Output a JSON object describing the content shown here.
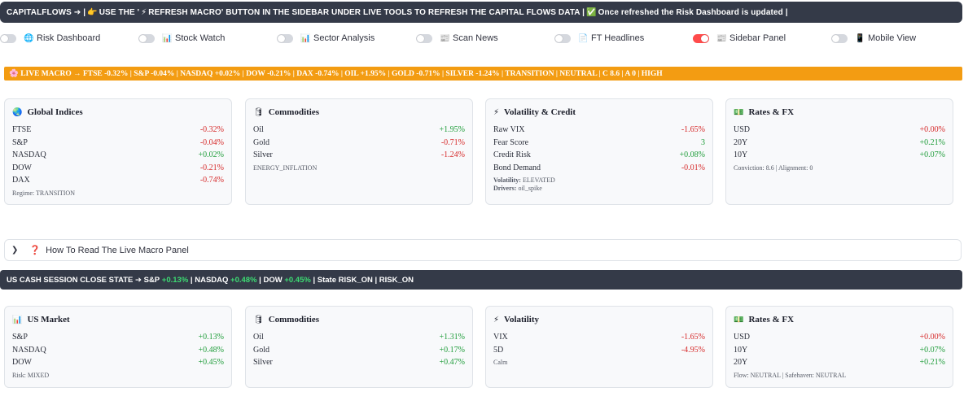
{
  "banner": {
    "brand": "CAPITALFLOWS",
    "arrow": "➔ |",
    "point_icon": "👉",
    "text_a": "USE THE '",
    "bolt_icon": "⚡",
    "text_b": "REFRESH MACRO' BUTTON IN THE SIDEBAR UNDER LIVE TOOLS TO REFRESH THE CAPITAL FLOWS DATA |",
    "check_icon": "✅",
    "text_c": "Once refreshed the Risk Dashboard is updated |"
  },
  "toggles": [
    {
      "label": "Risk Dashboard",
      "icon": "🌐",
      "on": false
    },
    {
      "label": "Stock Watch",
      "icon": "📊",
      "on": false
    },
    {
      "label": "Sector Analysis",
      "icon": "📊",
      "on": false
    },
    {
      "label": "Scan News",
      "icon": "📰",
      "on": false
    },
    {
      "label": "FT Headlines",
      "icon": "📄",
      "on": false
    },
    {
      "label": "Sidebar Panel",
      "icon": "📰",
      "on": true
    },
    {
      "label": "Mobile View",
      "icon": "📱",
      "on": false
    }
  ],
  "live_macro": {
    "text": "🌸 LIVE MACRO → FTSE -0.32% | S&P -0.04% | NASDAQ +0.02% | DOW -0.21% | DAX -0.74% | OIL +1.95% | GOLD -0.71% | SILVER -1.24% | TRANSITION | NEUTRAL | C 8.6 | A 0 | HIGH"
  },
  "live_cards": {
    "global": {
      "icon": "🌏",
      "title": "Global Indices",
      "rows": [
        {
          "name": "FTSE",
          "value": "-0.32%"
        },
        {
          "name": "S&P",
          "value": "-0.04%"
        },
        {
          "name": "NASDAQ",
          "value": "+0.02%"
        },
        {
          "name": "DOW",
          "value": "-0.21%"
        },
        {
          "name": "DAX",
          "value": "-0.74%"
        }
      ],
      "regime_label": "Regime:",
      "regime_value": "TRANSITION"
    },
    "commodities": {
      "icon": "🛢",
      "title": "Commodities",
      "rows": [
        {
          "name": "Oil",
          "value": "+1.95%"
        },
        {
          "name": "Gold",
          "value": "-0.71%"
        },
        {
          "name": "Silver",
          "value": "-1.24%"
        }
      ],
      "note": "ENERGY_INFLATION"
    },
    "volatility": {
      "icon": "⚡",
      "title": "Volatility & Credit",
      "rows": [
        {
          "name": "Raw VIX",
          "value": "-1.65%"
        },
        {
          "name": "Fear Score",
          "value": "3"
        },
        {
          "name": "Credit Risk",
          "value": "+0.08%"
        },
        {
          "name": "Bond Demand",
          "value": "-0.01%"
        }
      ],
      "vol_label": "Volatility:",
      "vol_value": "ELEVATED",
      "drivers_label": "Drivers:",
      "drivers_value": "oil_spike"
    },
    "rates": {
      "icon": "💵",
      "title": "Rates & FX",
      "rows": [
        {
          "name": "USD",
          "value": "+0.00%"
        },
        {
          "name": "20Y",
          "value": "+0.21%"
        },
        {
          "name": "10Y",
          "value": "+0.07%"
        }
      ],
      "note": "Conviction: 8.6 | Alignment: 0"
    }
  },
  "expander": {
    "icon": "❓",
    "label": "How To Read The Live Macro Panel"
  },
  "session": {
    "prefix": "US CASH SESSION CLOSE STATE ➔ S&P",
    "sp": "+0.13%",
    "nasdaq_label": "| NASDAQ",
    "nasdaq": "+0.48%",
    "dow_label": "| DOW",
    "dow": "+0.45%",
    "suffix": "| State RISK_ON | RISK_ON"
  },
  "close_cards": {
    "us": {
      "icon": "📊",
      "title": "US Market",
      "rows": [
        {
          "name": "S&P",
          "value": "+0.13%"
        },
        {
          "name": "NASDAQ",
          "value": "+0.48%"
        },
        {
          "name": "DOW",
          "value": "+0.45%"
        }
      ],
      "note": "Risk: MIXED"
    },
    "commodities": {
      "icon": "🛢",
      "title": "Commodities",
      "rows": [
        {
          "name": "Oil",
          "value": "+1.31%"
        },
        {
          "name": "Gold",
          "value": "+0.17%"
        },
        {
          "name": "Silver",
          "value": "+0.47%"
        }
      ]
    },
    "volatility": {
      "icon": "⚡",
      "title": "Volatility",
      "rows": [
        {
          "name": "VIX",
          "value": "-1.65%"
        },
        {
          "name": "5D",
          "value": "-4.95%"
        }
      ],
      "note": "Calm"
    },
    "rates": {
      "icon": "💵",
      "title": "Rates & FX",
      "rows": [
        {
          "name": "USD",
          "value": "+0.00%"
        },
        {
          "name": "10Y",
          "value": "+0.07%"
        },
        {
          "name": "20Y",
          "value": "+0.21%"
        }
      ],
      "note": "Flow: NEUTRAL | Safehaven: NEUTRAL"
    }
  },
  "colors": {
    "positive": "#1f9d3a",
    "negative": "#d62b2b",
    "banner_bg": "#343a48",
    "ticker_bg": "#f39c12",
    "toggle_on": "#ff4b4b"
  }
}
